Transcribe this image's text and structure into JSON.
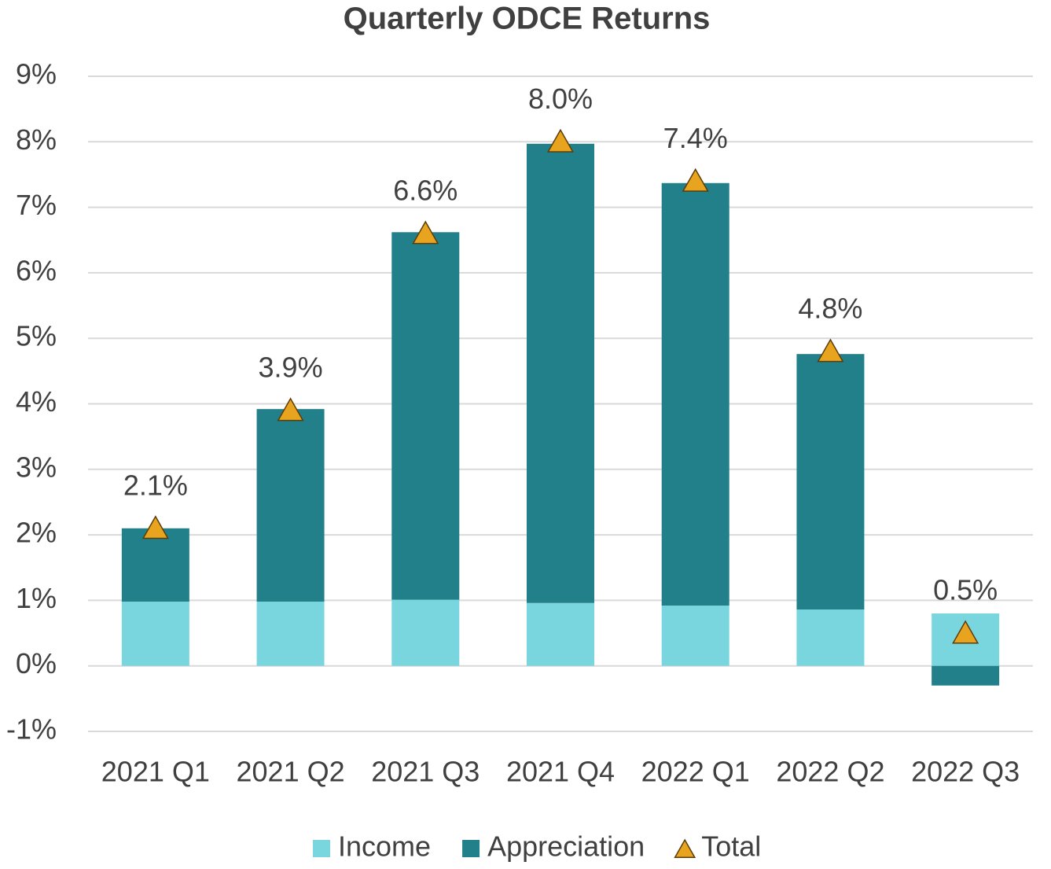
{
  "chart_data": {
    "type": "stacked-bar-with-markers",
    "title": "Quarterly ODCE Returns",
    "categories": [
      "2021 Q1",
      "2021 Q2",
      "2021 Q3",
      "2021 Q4",
      "2022 Q1",
      "2022 Q2",
      "2022 Q3"
    ],
    "series": [
      {
        "name": "Income",
        "color": "#79d6df",
        "kind": "bar",
        "values": [
          0.98,
          0.98,
          1.01,
          0.96,
          0.92,
          0.86,
          0.8
        ]
      },
      {
        "name": "Appreciation",
        "color": "#21808a",
        "kind": "bar",
        "values": [
          1.12,
          2.94,
          5.61,
          7.01,
          6.45,
          3.9,
          -0.3
        ]
      },
      {
        "name": "Total",
        "color": "#e8a41f",
        "kind": "marker",
        "values": [
          2.1,
          3.9,
          6.6,
          8.0,
          7.4,
          4.8,
          0.5
        ],
        "value_labels": [
          "2.1%",
          "3.9%",
          "6.6%",
          "8.0%",
          "7.4%",
          "4.8%",
          "0.5%"
        ]
      }
    ],
    "ylim": [
      -1,
      9
    ],
    "yticks": [
      {
        "value": -1,
        "label": "-1%"
      },
      {
        "value": 0,
        "label": "0%"
      },
      {
        "value": 1,
        "label": "1%"
      },
      {
        "value": 2,
        "label": "2%"
      },
      {
        "value": 3,
        "label": "3%"
      },
      {
        "value": 4,
        "label": "4%"
      },
      {
        "value": 5,
        "label": "5%"
      },
      {
        "value": 6,
        "label": "6%"
      },
      {
        "value": 7,
        "label": "7%"
      },
      {
        "value": 8,
        "label": "8%"
      },
      {
        "value": 9,
        "label": "9%"
      }
    ],
    "grid": true,
    "legend": "bottom"
  }
}
